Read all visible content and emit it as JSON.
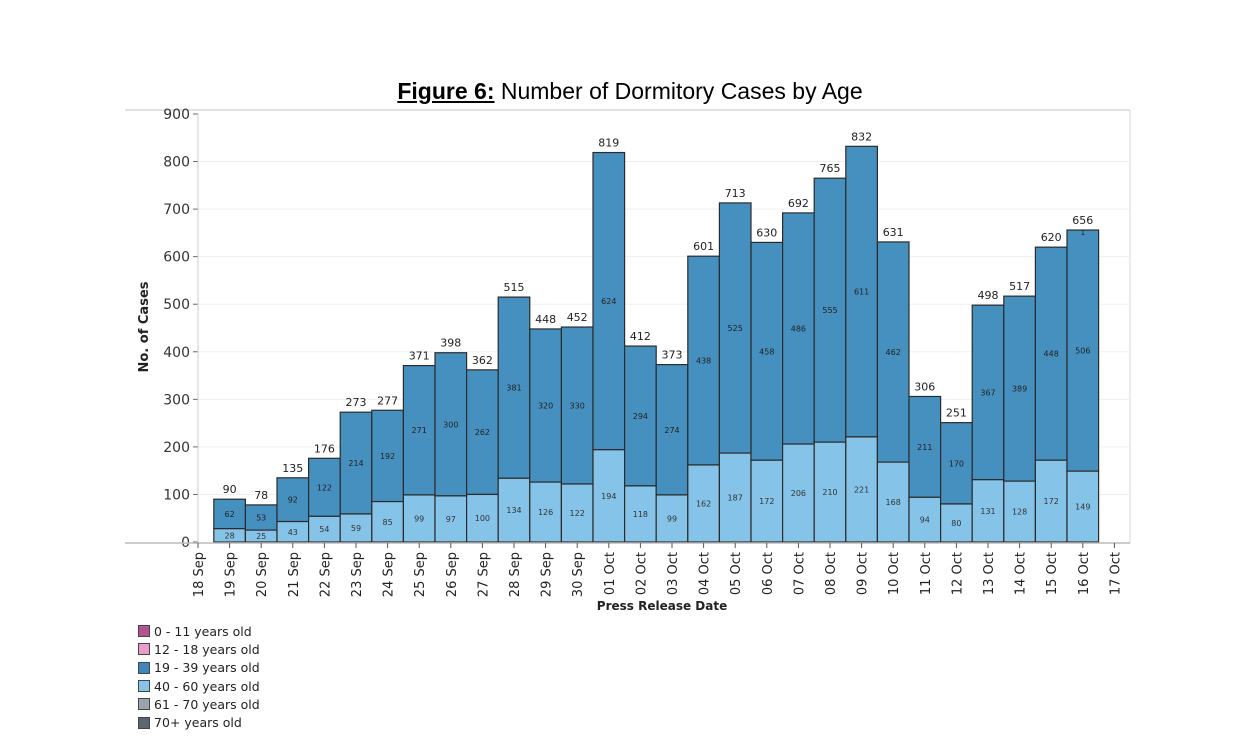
{
  "title": {
    "prefix": "Figure 6:",
    "text": " Number of Dormitory Cases by Age"
  },
  "chart_data": {
    "type": "bar",
    "stacked": true,
    "title": "Figure 6: Number of Dormitory Cases by Age",
    "xlabel": "Press Release Date",
    "ylabel": "No. of Cases",
    "ylim": [
      0,
      900
    ],
    "yticks": [
      0,
      100,
      200,
      300,
      400,
      500,
      600,
      700,
      800,
      900
    ],
    "grid": true,
    "legend_position": "bottom-left",
    "xtick_labels": [
      "18 Sep",
      "19 Sep",
      "20 Sep",
      "21 Sep",
      "22 Sep",
      "23 Sep",
      "24 Sep",
      "25 Sep",
      "26 Sep",
      "27 Sep",
      "28 Sep",
      "29 Sep",
      "30 Sep",
      "01 Oct",
      "02 Oct",
      "03 Oct",
      "04 Oct",
      "05 Oct",
      "06 Oct",
      "07 Oct",
      "08 Oct",
      "09 Oct",
      "10 Oct",
      "11 Oct",
      "12 Oct",
      "13 Oct",
      "14 Oct",
      "15 Oct",
      "16 Oct",
      "17 Oct"
    ],
    "categories": [
      "19 Sep",
      "20 Sep",
      "21 Sep",
      "22 Sep",
      "23 Sep",
      "24 Sep",
      "25 Sep",
      "26 Sep",
      "27 Sep",
      "28 Sep",
      "29 Sep",
      "30 Sep",
      "01 Oct",
      "02 Oct",
      "03 Oct",
      "04 Oct",
      "05 Oct",
      "06 Oct",
      "07 Oct",
      "08 Oct",
      "09 Oct",
      "10 Oct",
      "11 Oct",
      "12 Oct",
      "13 Oct",
      "14 Oct",
      "15 Oct",
      "16 Oct"
    ],
    "series": [
      {
        "name": "40 - 60 years old",
        "values": [
          28,
          25,
          43,
          54,
          59,
          85,
          99,
          97,
          100,
          134,
          126,
          122,
          194,
          118,
          99,
          162,
          187,
          172,
          206,
          210,
          221,
          168,
          94,
          80,
          131,
          128,
          172,
          149
        ]
      },
      {
        "name": "19 - 39 years old",
        "values": [
          62,
          53,
          92,
          122,
          214,
          192,
          271,
          300,
          262,
          381,
          320,
          330,
          624,
          294,
          274,
          438,
          525,
          458,
          486,
          555,
          611,
          462,
          211,
          170,
          367,
          389,
          448,
          506
        ]
      }
    ],
    "totals": [
      90,
      78,
      135,
      176,
      273,
      277,
      371,
      398,
      362,
      515,
      448,
      452,
      819,
      412,
      373,
      601,
      713,
      630,
      692,
      765,
      832,
      631,
      306,
      251,
      498,
      517,
      620,
      656
    ],
    "annotations": [
      {
        "category": "16 Oct",
        "text": "1"
      }
    ],
    "colors": {
      "19-39": "#4690c0",
      "40-60": "#85c4e8",
      "outline": "#2b2b2b",
      "grid": "#efefef"
    }
  },
  "legend": [
    {
      "label": "0 - 11 years old",
      "color": "#b4548e"
    },
    {
      "label": "12 - 18 years old",
      "color": "#e99ccb"
    },
    {
      "label": "19 - 39 years old",
      "color": "#3f88bb"
    },
    {
      "label": "40 - 60 years old",
      "color": "#86c4e9"
    },
    {
      "label": "61 - 70 years old",
      "color": "#9aa3ae"
    },
    {
      "label": "70+ years old",
      "color": "#5e6570"
    }
  ]
}
